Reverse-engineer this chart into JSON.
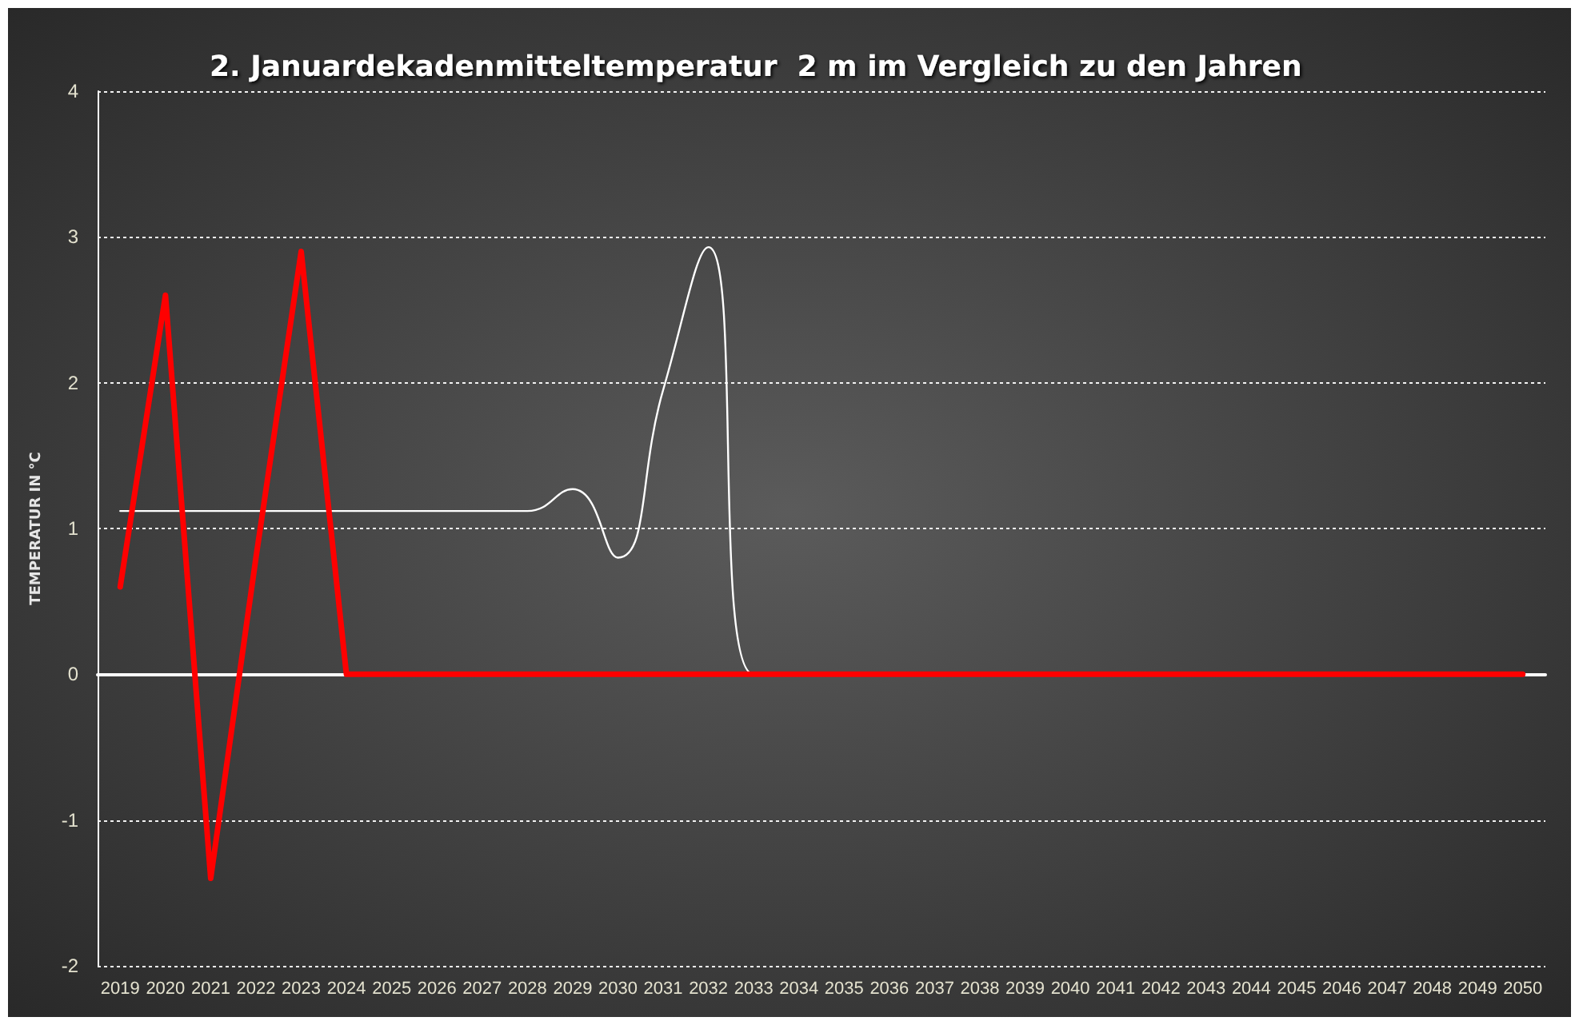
{
  "chart_data": {
    "type": "line",
    "title": "2. Januardekadenmitteltemperatur  2 m im Vergleich zu den Jahren",
    "ylabel": "TEMPERATUR IN °C",
    "categories": [
      "2019",
      "2020",
      "2021",
      "2022",
      "2023",
      "2024",
      "2025",
      "2026",
      "2027",
      "2028",
      "2029",
      "2030",
      "2031",
      "2032",
      "2033",
      "2034",
      "2035",
      "2036",
      "2037",
      "2038",
      "2039",
      "2040",
      "2041",
      "2042",
      "2043",
      "2044",
      "2045",
      "2046",
      "2047",
      "2048",
      "2049",
      "2050"
    ],
    "series": [
      {
        "color": "#ff0000",
        "values": [
          0.6,
          2.6,
          -1.4,
          0.8,
          2.9,
          0,
          0,
          0,
          0,
          0,
          0,
          0,
          0,
          0,
          0,
          0,
          0,
          0,
          0,
          0,
          0,
          0,
          0,
          0,
          0,
          0,
          0,
          0,
          0,
          0,
          0,
          0
        ]
      },
      {
        "color": "#ffffff",
        "values": [
          1.12,
          1.12,
          1.12,
          1.12,
          1.12,
          1.12,
          1.12,
          1.12,
          1.12,
          1.12,
          1.27,
          0.8,
          1.95,
          2.93,
          0,
          0,
          null,
          null,
          null,
          null,
          null,
          null,
          null,
          null,
          null,
          null,
          null,
          null,
          null,
          null,
          null,
          null
        ]
      }
    ],
    "ylim": [
      -2,
      4
    ],
    "yticks": [
      -2,
      -1,
      0,
      1,
      2,
      3,
      4
    ],
    "grid": "y",
    "marker": "none"
  }
}
